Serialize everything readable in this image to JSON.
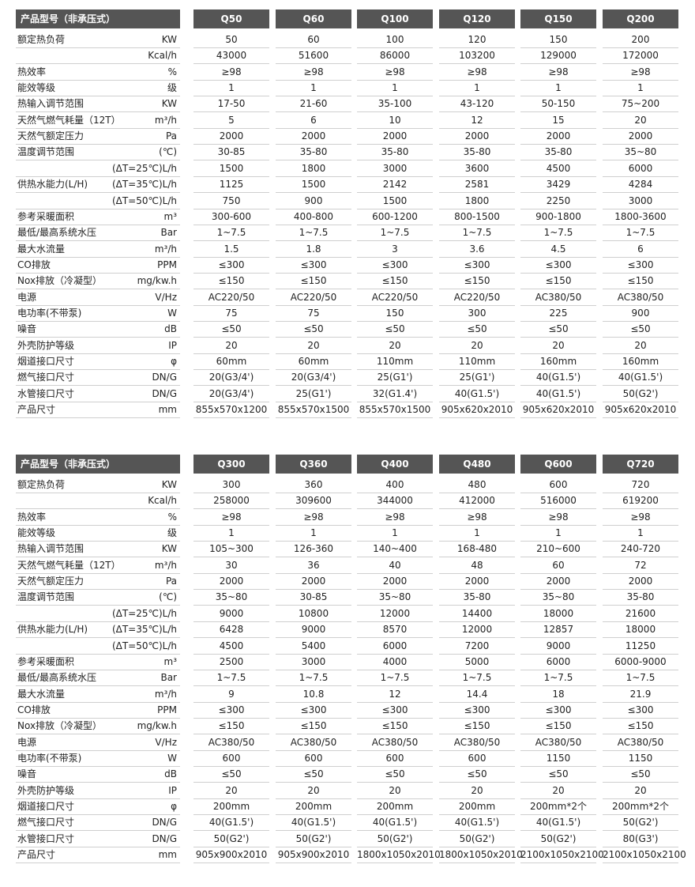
{
  "tables": [
    {
      "header": {
        "label": "产品型号（非承压式）",
        "models": [
          "Q50",
          "Q60",
          "Q100",
          "Q120",
          "Q150",
          "Q200"
        ]
      },
      "rows": [
        {
          "label": "额定热负荷",
          "unit": "KW",
          "cells": [
            "50",
            "60",
            "100",
            "120",
            "150",
            "200"
          ]
        },
        {
          "unit": "Kcal/h",
          "cells": [
            "43000",
            "51600",
            "86000",
            "103200",
            "129000",
            "172000"
          ]
        },
        {
          "label": "热效率",
          "unit": "%",
          "cells": [
            "≥98",
            "≥98",
            "≥98",
            "≥98",
            "≥98",
            "≥98"
          ]
        },
        {
          "label": "能效等级",
          "unit": "级",
          "cells": [
            "1",
            "1",
            "1",
            "1",
            "1",
            "1"
          ]
        },
        {
          "label": "热输入调节范围",
          "unit": "KW",
          "cells": [
            "17-50",
            "21-60",
            "35-100",
            "43-120",
            "50-150",
            "75~200"
          ]
        },
        {
          "label": "天然气燃气耗量（12T）",
          "unit": "m³/h",
          "cells": [
            "5",
            "6",
            "10",
            "12",
            "15",
            "20"
          ]
        },
        {
          "label": "天然气额定压力",
          "unit": "Pa",
          "cells": [
            "2000",
            "2000",
            "2000",
            "2000",
            "2000",
            "2000"
          ]
        },
        {
          "label": "温度调节范围",
          "unit": "(℃)",
          "cells": [
            "30-85",
            "35-80",
            "35-80",
            "35-80",
            "35-80",
            "35~80"
          ]
        },
        {
          "unit": "(ΔT=25℃)L/h",
          "cells": [
            "1500",
            "1800",
            "3000",
            "3600",
            "4500",
            "6000"
          ]
        },
        {
          "label": "供热水能力(L/H)",
          "unit": "(ΔT=35℃)L/h",
          "cells": [
            "1125",
            "1500",
            "2142",
            "2581",
            "3429",
            "4284"
          ]
        },
        {
          "unit": "(ΔT=50℃)L/h",
          "cells": [
            "750",
            "900",
            "1500",
            "1800",
            "2250",
            "3000"
          ]
        },
        {
          "label": "参考采暖面积",
          "unit": "m³",
          "cells": [
            "300-600",
            "400-800",
            "600-1200",
            "800-1500",
            "900-1800",
            "1800-3600"
          ]
        },
        {
          "label": "最低/最高系统水压",
          "unit": "Bar",
          "cells": [
            "1~7.5",
            "1~7.5",
            "1~7.5",
            "1~7.5",
            "1~7.5",
            "1~7.5"
          ]
        },
        {
          "label": "最大水流量",
          "unit": "m³/h",
          "cells": [
            "1.5",
            "1.8",
            "3",
            "3.6",
            "4.5",
            "6"
          ]
        },
        {
          "label": "CO排放",
          "unit": "PPM",
          "cells": [
            "≤300",
            "≤300",
            "≤300",
            "≤300",
            "≤300",
            "≤300"
          ]
        },
        {
          "label": "Nox排放（冷凝型）",
          "unit": "mg/kw.h",
          "cells": [
            "≤150",
            "≤150",
            "≤150",
            "≤150",
            "≤150",
            "≤150"
          ]
        },
        {
          "label": "电源",
          "unit": "V/Hz",
          "cells": [
            "AC220/50",
            "AC220/50",
            "AC220/50",
            "AC220/50",
            "AC380/50",
            "AC380/50"
          ]
        },
        {
          "label": "电功率(不带泵)",
          "unit": "W",
          "cells": [
            "75",
            "75",
            "150",
            "300",
            "225",
            "900"
          ]
        },
        {
          "label": "噪音",
          "unit": "dB",
          "cells": [
            "≤50",
            "≤50",
            "≤50",
            "≤50",
            "≤50",
            "≤50"
          ]
        },
        {
          "label": "外壳防护等级",
          "unit": "IP",
          "cells": [
            "20",
            "20",
            "20",
            "20",
            "20",
            "20"
          ]
        },
        {
          "label": "烟道接口尺寸",
          "unit": "φ",
          "cells": [
            "60mm",
            "60mm",
            "110mm",
            "110mm",
            "160mm",
            "160mm"
          ]
        },
        {
          "label": "燃气接口尺寸",
          "unit": "DN/G",
          "cells": [
            "20(G3/4')",
            "20(G3/4')",
            "25(G1')",
            "25(G1')",
            "40(G1.5')",
            "40(G1.5')"
          ]
        },
        {
          "label": "水管接口尺寸",
          "unit": "DN/G",
          "cells": [
            "20(G3/4')",
            "25(G1')",
            "32(G1.4')",
            "40(G1.5')",
            "40(G1.5')",
            "50(G2')"
          ]
        },
        {
          "label": "产品尺寸",
          "unit": "mm",
          "cells": [
            "855x570x1200",
            "855x570x1500",
            "855x570x1500",
            "905x620x2010",
            "905x620x2010",
            "905x620x2010"
          ]
        }
      ]
    },
    {
      "header": {
        "label": "产品型号（非承压式）",
        "models": [
          "Q300",
          "Q360",
          "Q400",
          "Q480",
          "Q600",
          "Q720"
        ]
      },
      "rows": [
        {
          "label": "额定热负荷",
          "unit": "KW",
          "cells": [
            "300",
            "360",
            "400",
            "480",
            "600",
            "720"
          ]
        },
        {
          "unit": "Kcal/h",
          "cells": [
            "258000",
            "309600",
            "344000",
            "412000",
            "516000",
            "619200"
          ]
        },
        {
          "label": "热效率",
          "unit": "%",
          "cells": [
            "≥98",
            "≥98",
            "≥98",
            "≥98",
            "≥98",
            "≥98"
          ]
        },
        {
          "label": "能效等级",
          "unit": "级",
          "cells": [
            "1",
            "1",
            "1",
            "1",
            "1",
            "1"
          ]
        },
        {
          "label": "热输入调节范围",
          "unit": "KW",
          "cells": [
            "105~300",
            "126-360",
            "140~400",
            "168-480",
            "210~600",
            "240-720"
          ]
        },
        {
          "label": "天然气燃气耗量（12T）",
          "unit": "m³/h",
          "cells": [
            "30",
            "36",
            "40",
            "48",
            "60",
            "72"
          ]
        },
        {
          "label": "天然气额定压力",
          "unit": "Pa",
          "cells": [
            "2000",
            "2000",
            "2000",
            "2000",
            "2000",
            "2000"
          ]
        },
        {
          "label": "温度调节范围",
          "unit": "(℃)",
          "cells": [
            "35~80",
            "30-85",
            "35~80",
            "35-80",
            "35~80",
            "35-80"
          ]
        },
        {
          "unit": "(ΔT=25℃)L/h",
          "cells": [
            "9000",
            "10800",
            "12000",
            "14400",
            "18000",
            "21600"
          ]
        },
        {
          "label": "供热水能力(L/H)",
          "unit": "(ΔT=35℃)L/h",
          "cells": [
            "6428",
            "9000",
            "8570",
            "12000",
            "12857",
            "18000"
          ]
        },
        {
          "unit": "(ΔT=50℃)L/h",
          "cells": [
            "4500",
            "5400",
            "6000",
            "7200",
            "9000",
            "11250"
          ]
        },
        {
          "label": "参考采暖面积",
          "unit": "m³",
          "cells": [
            "2500",
            "3000",
            "4000",
            "5000",
            "6000",
            "6000-9000"
          ]
        },
        {
          "label": "最低/最高系统水压",
          "unit": "Bar",
          "cells": [
            "1~7.5",
            "1~7.5",
            "1~7.5",
            "1~7.5",
            "1~7.5",
            "1~7.5"
          ]
        },
        {
          "label": "最大水流量",
          "unit": "m³/h",
          "cells": [
            "9",
            "10.8",
            "12",
            "14.4",
            "18",
            "21.9"
          ]
        },
        {
          "label": "CO排放",
          "unit": "PPM",
          "cells": [
            "≤300",
            "≤300",
            "≤300",
            "≤300",
            "≤300",
            "≤300"
          ]
        },
        {
          "label": "Nox排放（冷凝型）",
          "unit": "mg/kw.h",
          "cells": [
            "≤150",
            "≤150",
            "≤150",
            "≤150",
            "≤150",
            "≤150"
          ]
        },
        {
          "label": "电源",
          "unit": "V/Hz",
          "cells": [
            "AC380/50",
            "AC380/50",
            "AC380/50",
            "AC380/50",
            "AC380/50",
            "AC380/50"
          ]
        },
        {
          "label": "电功率(不带泵)",
          "unit": "W",
          "cells": [
            "600",
            "600",
            "600",
            "600",
            "1150",
            "1150"
          ]
        },
        {
          "label": "噪音",
          "unit": "dB",
          "cells": [
            "≤50",
            "≤50",
            "≤50",
            "≤50",
            "≤50",
            "≤50"
          ]
        },
        {
          "label": "外壳防护等级",
          "unit": "IP",
          "cells": [
            "20",
            "20",
            "20",
            "20",
            "20",
            "20"
          ]
        },
        {
          "label": "烟道接口尺寸",
          "unit": "φ",
          "cells": [
            "200mm",
            "200mm",
            "200mm",
            "200mm",
            "200mm*2个",
            "200mm*2个"
          ]
        },
        {
          "label": "燃气接口尺寸",
          "unit": "DN/G",
          "cells": [
            "40(G1.5')",
            "40(G1.5')",
            "40(G1.5')",
            "40(G1.5')",
            "40(G1.5')",
            "50(G2')"
          ]
        },
        {
          "label": "水管接口尺寸",
          "unit": "DN/G",
          "cells": [
            "50(G2')",
            "50(G2')",
            "50(G2')",
            "50(G2')",
            "50(G2')",
            "80(G3')"
          ]
        },
        {
          "label": "产品尺寸",
          "unit": "mm",
          "cells": [
            "905x900x2010",
            "905x900x2010",
            "1800x1050x2010",
            "1800x1050x2010",
            "2100x1050x2100",
            "2100x1050x2100"
          ]
        }
      ]
    }
  ]
}
